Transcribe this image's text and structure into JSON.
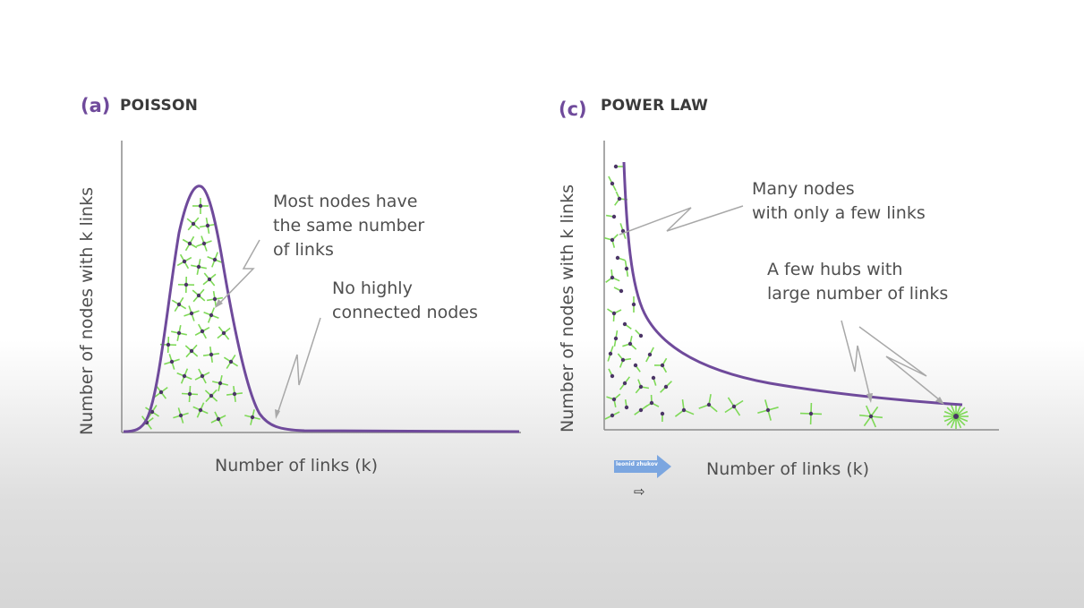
{
  "panel_a": {
    "letter": "(a)",
    "title": "POISSON",
    "ylabel": "Number of nodes with k links",
    "xlabel": "Number of links (k)",
    "annotation_same": [
      "Most nodes have",
      "the same number",
      "of links"
    ],
    "annotation_none": [
      "No highly",
      "connected nodes"
    ]
  },
  "panel_c": {
    "letter": "(c)",
    "title": "POWER LAW",
    "ylabel": "Number of nodes with k links",
    "xlabel": "Number of links (k)",
    "annotation_many": [
      "Many nodes",
      "with only a few links"
    ],
    "annotation_hubs": [
      "A few hubs with",
      "large number of links"
    ]
  },
  "watermark": {
    "text": "leonid zhukov",
    "arrow_glyph": "⇨"
  },
  "colors": {
    "curve": "#6f4a9b",
    "node": "#4b3566",
    "link": "#7ed957",
    "axis": "#8c8c8c",
    "pointer": "#a8a8a8",
    "watermark_fill": "#7ba6e0"
  }
}
